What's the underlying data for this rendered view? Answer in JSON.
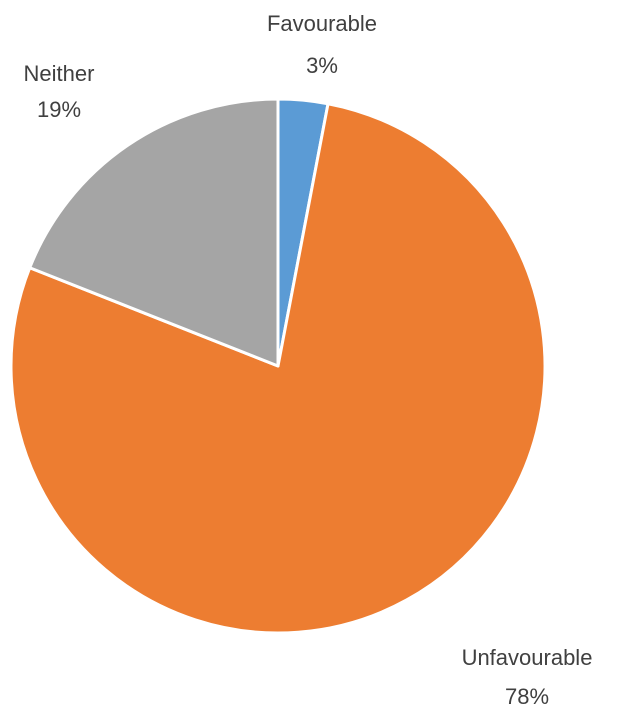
{
  "chart_data": {
    "type": "pie",
    "title": "",
    "slices": [
      {
        "label": "Favourable",
        "percent_label": "3%",
        "value": 3,
        "color": "#5B9BD5"
      },
      {
        "label": "Unfavourable",
        "percent_label": "78%",
        "value": 78,
        "color": "#ED7D31"
      },
      {
        "label": "Neither",
        "percent_label": "19%",
        "value": 19,
        "color": "#A5A5A5"
      }
    ],
    "start_angle_deg": 0,
    "direction": "clockwise",
    "legend": "none",
    "data_labels": "outside"
  }
}
